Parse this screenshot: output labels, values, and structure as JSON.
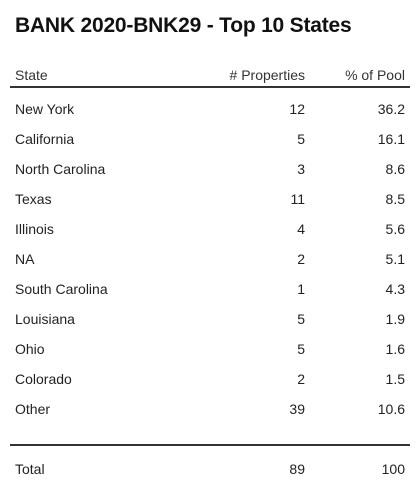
{
  "title": "BANK 2020-BNK29 - Top 10 States",
  "table": {
    "headers": {
      "state": "State",
      "properties": "# Properties",
      "pool": "% of Pool"
    },
    "rows": [
      {
        "state": "New York",
        "properties": "12",
        "pool": "36.2"
      },
      {
        "state": "California",
        "properties": "5",
        "pool": "16.1"
      },
      {
        "state": "North Carolina",
        "properties": "3",
        "pool": "8.6"
      },
      {
        "state": "Texas",
        "properties": "11",
        "pool": "8.5"
      },
      {
        "state": "Illinois",
        "properties": "4",
        "pool": "5.6"
      },
      {
        "state": "NA",
        "properties": "2",
        "pool": "5.1"
      },
      {
        "state": "South Carolina",
        "properties": "1",
        "pool": "4.3"
      },
      {
        "state": "Louisiana",
        "properties": "5",
        "pool": "1.9"
      },
      {
        "state": "Ohio",
        "properties": "5",
        "pool": "1.6"
      },
      {
        "state": "Colorado",
        "properties": "2",
        "pool": "1.5"
      },
      {
        "state": "Other",
        "properties": "39",
        "pool": "10.6"
      }
    ],
    "total": {
      "state": "Total",
      "properties": "89",
      "pool": "100"
    }
  }
}
